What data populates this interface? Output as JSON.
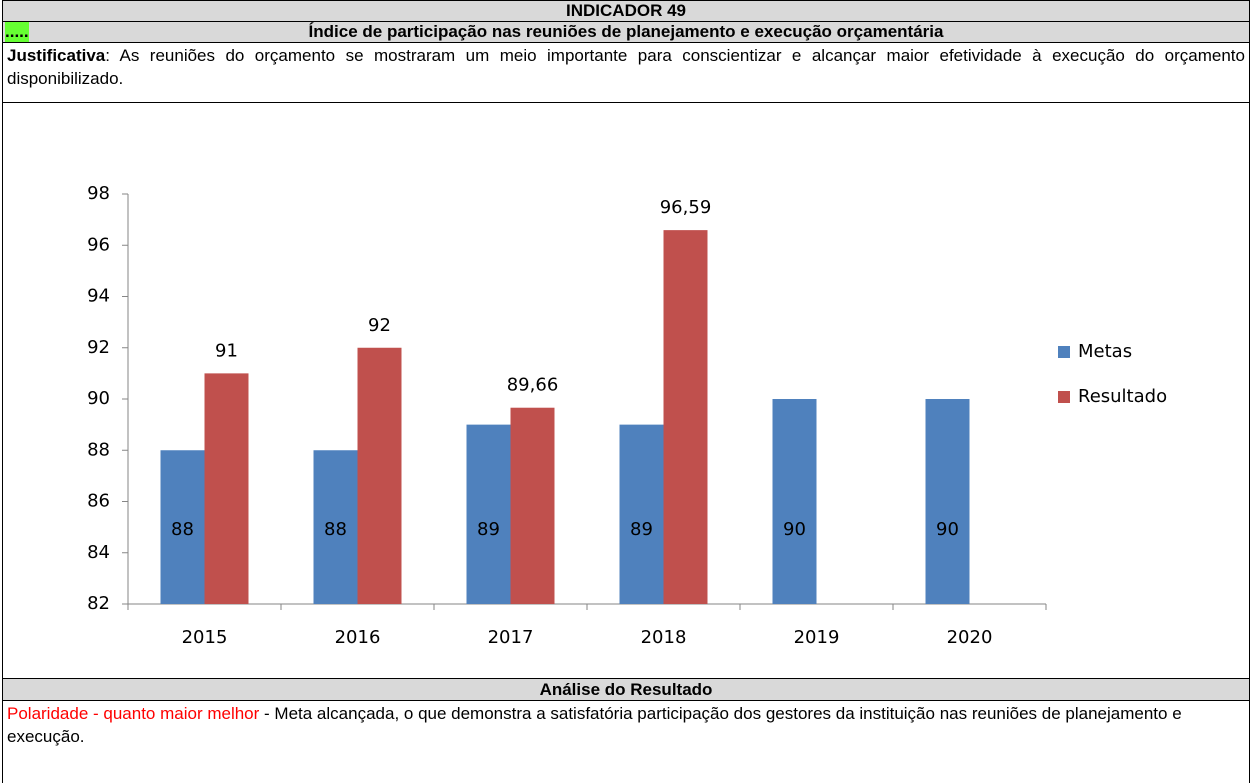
{
  "header": {
    "title": "INDICADOR 49",
    "marker": ".....",
    "subtitle": "Índice de participação nas reuniões de planejamento e execução orçamentária"
  },
  "justification": {
    "label": "Justificativa",
    "text": ": As reuniões do orçamento se mostraram um meio importante para conscientizar e alcançar maior efetividade à execução do orçamento disponibilizado."
  },
  "chart_data": {
    "type": "bar",
    "categories": [
      "2015",
      "2016",
      "2017",
      "2018",
      "2019",
      "2020"
    ],
    "series": [
      {
        "name": "Metas",
        "color": "#4f81bd",
        "values": [
          88,
          88,
          89,
          89,
          90,
          90
        ]
      },
      {
        "name": "Resultado",
        "color": "#c0504d",
        "values": [
          91,
          92,
          89.66,
          96.59,
          null,
          null
        ],
        "value_labels": [
          "91",
          "92",
          "89,66",
          "96,59",
          null,
          null
        ]
      }
    ],
    "ylim": [
      82,
      98
    ],
    "yticks": [
      82,
      84,
      86,
      88,
      90,
      92,
      94,
      96,
      98
    ],
    "grid": false,
    "legend": "right"
  },
  "analysis": {
    "title": "Análise do Resultado",
    "polarity": "Polaridade - quanto maior melhor",
    "text": " - Meta alcançada, o que demonstra a satisfatória participação dos gestores da instituição nas reuniões de planejamento e execução."
  }
}
